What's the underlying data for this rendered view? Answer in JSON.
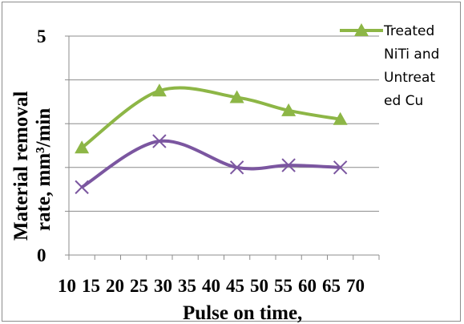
{
  "chart_data": {
    "type": "line",
    "title": "",
    "xlabel": "Pulse on time,",
    "ylabel_line1": "Material removal",
    "ylabel_line2": "rate, mm³/min",
    "x_tick_labels": [
      "10",
      "15",
      "20",
      "25",
      "30",
      "35",
      "40",
      "45",
      "50",
      "55",
      "60",
      "65",
      "70"
    ],
    "y_tick_labels": [
      "0",
      "5"
    ],
    "x_positions": [
      12.5,
      27.5,
      42.5,
      52.5,
      62.5
    ],
    "xlim": [
      10,
      70
    ],
    "ylim": [
      0,
      5
    ],
    "grid": true,
    "legend_position": "top-right",
    "series": [
      {
        "name": "Treated NiTi and Untreated Cu",
        "legend_lines": [
          "Treated",
          "NiTi and",
          "Untreat",
          "ed Cu"
        ],
        "color": "#8db646",
        "marker": "triangle",
        "values": [
          2.45,
          3.75,
          3.6,
          3.3,
          3.1
        ]
      },
      {
        "name": "",
        "color": "#7b56a0",
        "marker": "x",
        "values": [
          1.55,
          2.6,
          2.0,
          2.05,
          2.0
        ]
      }
    ]
  }
}
